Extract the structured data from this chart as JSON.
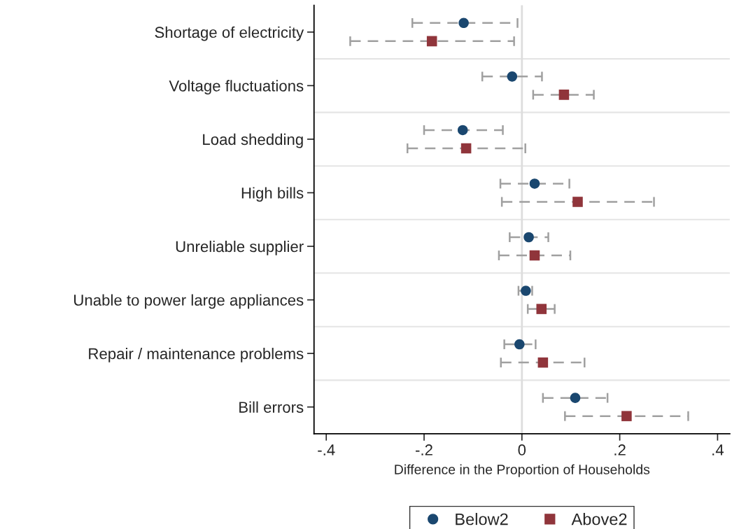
{
  "chart_data": {
    "type": "scatter",
    "orientation": "horizontal",
    "xlabel": "Difference in the Proportion of Households",
    "categories": [
      "Shortage of electricity",
      "Voltage fluctuations",
      "Load shedding",
      "High bills",
      "Unreliable supplier",
      "Unable to power large appliances",
      "Repair / maintenance problems",
      "Bill errors"
    ],
    "series": [
      {
        "name": "Below2",
        "color": "#1a476f",
        "marker": "circle",
        "values": [
          -0.119,
          -0.02,
          -0.121,
          0.026,
          0.014,
          0.008,
          -0.005,
          0.109
        ],
        "errors": [
          [
            -0.224,
            -0.009
          ],
          [
            -0.081,
            0.041
          ],
          [
            -0.2,
            -0.039
          ],
          [
            -0.044,
            0.097
          ],
          [
            -0.025,
            0.054
          ],
          [
            -0.007,
            0.021
          ],
          [
            -0.036,
            0.028
          ],
          [
            0.043,
            0.175
          ]
        ]
      },
      {
        "name": "Above2",
        "color": "#90353b",
        "marker": "square",
        "values": [
          -0.184,
          0.086,
          -0.114,
          0.114,
          0.026,
          0.04,
          0.043,
          0.214
        ],
        "errors": [
          [
            -0.351,
            -0.016
          ],
          [
            0.023,
            0.147
          ],
          [
            -0.234,
            0.007
          ],
          [
            -0.041,
            0.27
          ],
          [
            -0.047,
            0.099
          ],
          [
            0.012,
            0.067
          ],
          [
            -0.043,
            0.128
          ],
          [
            0.088,
            0.34
          ]
        ]
      }
    ],
    "xlim": [
      -0.425,
      0.425
    ],
    "xticks": [
      {
        "value": -0.4,
        "label": "-.4"
      },
      {
        "value": -0.2,
        "label": "-.2"
      },
      0,
      {
        "value": 0.2,
        "label": ".2"
      },
      {
        "value": 0.4,
        "label": ".4"
      }
    ],
    "ref_lines": [
      {
        "axis": "x",
        "value": 0,
        "color": "#dddddd"
      }
    ],
    "grid": "y",
    "legend": "bottom",
    "line_style": "dashed"
  }
}
